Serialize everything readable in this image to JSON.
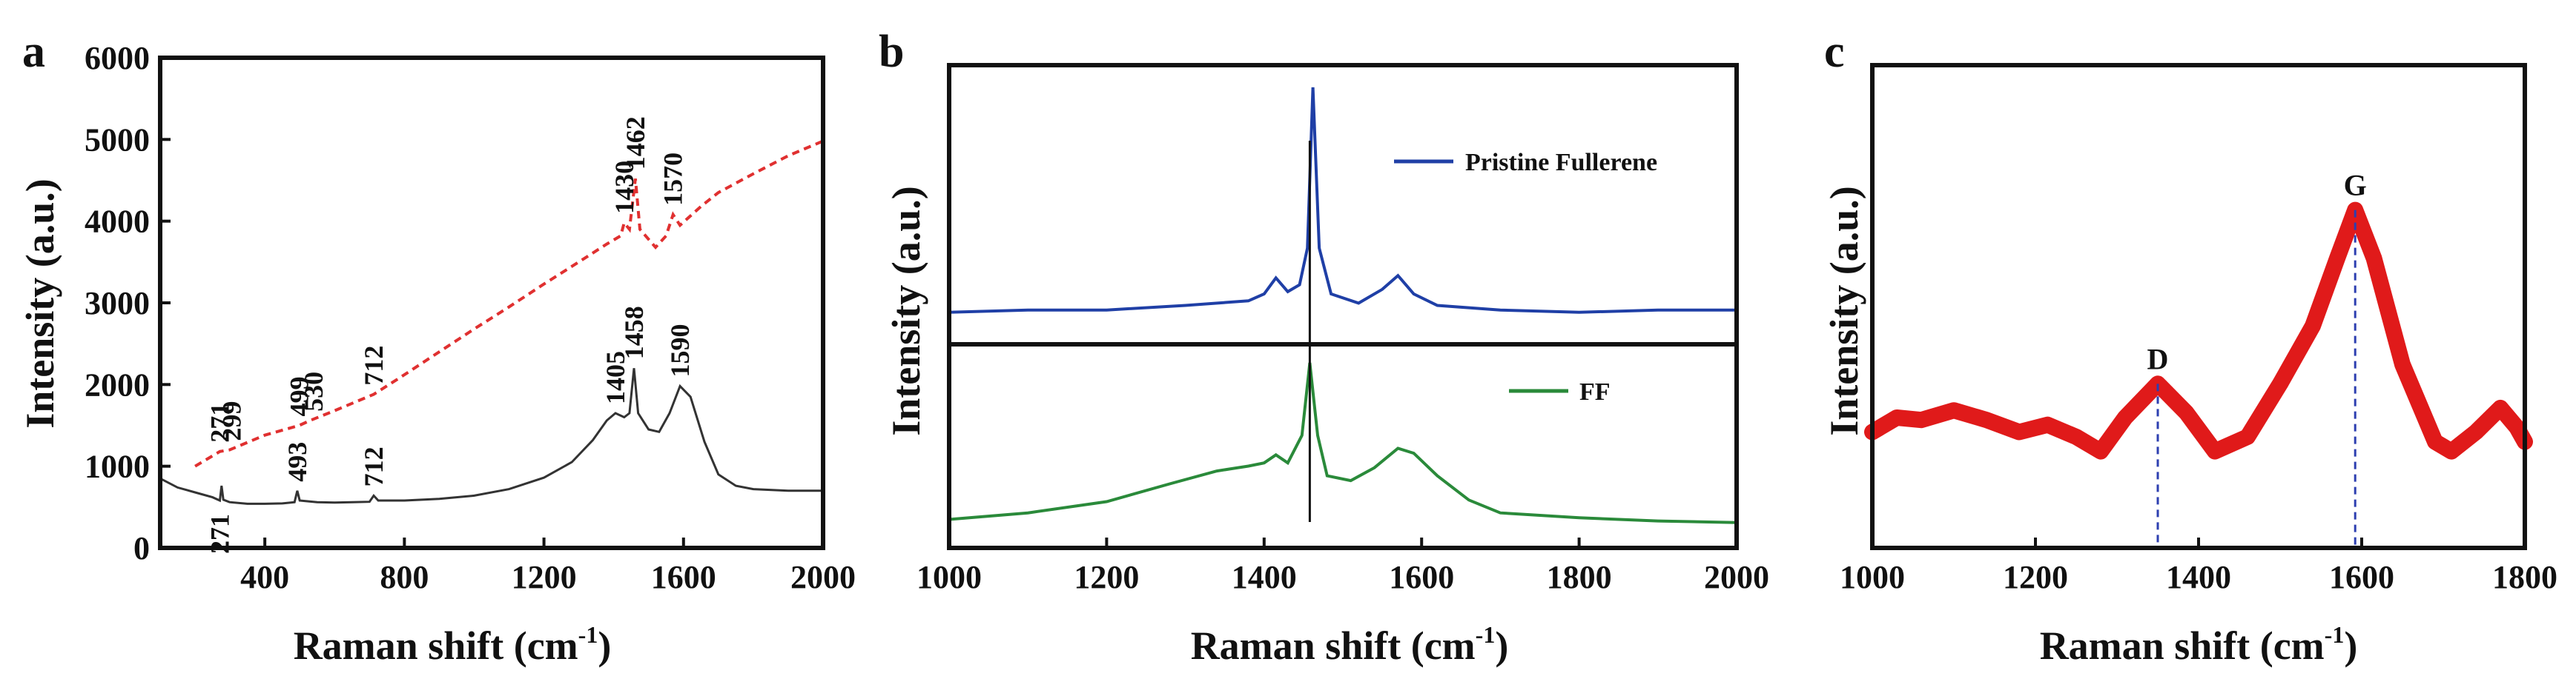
{
  "chart_data": [
    {
      "panel": "a",
      "type": "line",
      "xlabel": "Raman shift (cm",
      "xlabel_sup": "-1",
      "xlabel_close": ")",
      "ylabel": "Intensity (a.u.)",
      "xlim": [
        100,
        2000
      ],
      "ylim": [
        0,
        6000
      ],
      "x_ticks": [
        400,
        800,
        1200,
        1600,
        2000
      ],
      "y_ticks": [
        0,
        1000,
        2000,
        3000,
        4000,
        5000,
        6000
      ],
      "series": [
        {
          "name": "black solid",
          "color": "#333333",
          "style": "solid",
          "points": [
            [
              100,
              850
            ],
            [
              150,
              740
            ],
            [
              200,
              680
            ],
            [
              250,
              620
            ],
            [
              271,
              580
            ],
            [
              276,
              760
            ],
            [
              281,
              590
            ],
            [
              299,
              560
            ],
            [
              350,
              540
            ],
            [
              400,
              540
            ],
            [
              450,
              545
            ],
            [
              485,
              560
            ],
            [
              493,
              700
            ],
            [
              500,
              580
            ],
            [
              550,
              560
            ],
            [
              600,
              555
            ],
            [
              650,
              560
            ],
            [
              700,
              565
            ],
            [
              712,
              640
            ],
            [
              725,
              580
            ],
            [
              800,
              580
            ],
            [
              900,
              600
            ],
            [
              1000,
              640
            ],
            [
              1100,
              720
            ],
            [
              1200,
              860
            ],
            [
              1280,
              1050
            ],
            [
              1340,
              1320
            ],
            [
              1380,
              1560
            ],
            [
              1405,
              1650
            ],
            [
              1430,
              1600
            ],
            [
              1445,
              1650
            ],
            [
              1458,
              2200
            ],
            [
              1470,
              1650
            ],
            [
              1500,
              1450
            ],
            [
              1530,
              1420
            ],
            [
              1560,
              1650
            ],
            [
              1590,
              1980
            ],
            [
              1620,
              1850
            ],
            [
              1660,
              1300
            ],
            [
              1700,
              900
            ],
            [
              1750,
              760
            ],
            [
              1800,
              720
            ],
            [
              1900,
              700
            ],
            [
              2000,
              700
            ]
          ]
        },
        {
          "name": "red dashed",
          "color": "#e03030",
          "style": "dashed",
          "points": [
            [
              200,
              1000
            ],
            [
              271,
              1180
            ],
            [
              285,
              1190
            ],
            [
              299,
              1200
            ],
            [
              400,
              1380
            ],
            [
              499,
              1500
            ],
            [
              530,
              1560
            ],
            [
              600,
              1680
            ],
            [
              712,
              1880
            ],
            [
              800,
              2120
            ],
            [
              900,
              2400
            ],
            [
              1000,
              2680
            ],
            [
              1100,
              2950
            ],
            [
              1200,
              3230
            ],
            [
              1300,
              3500
            ],
            [
              1380,
              3720
            ],
            [
              1420,
              3820
            ],
            [
              1430,
              3980
            ],
            [
              1445,
              3900
            ],
            [
              1462,
              4520
            ],
            [
              1475,
              3900
            ],
            [
              1520,
              3680
            ],
            [
              1550,
              3820
            ],
            [
              1570,
              4080
            ],
            [
              1590,
              3950
            ],
            [
              1650,
              4180
            ],
            [
              1700,
              4350
            ],
            [
              1800,
              4580
            ],
            [
              1900,
              4800
            ],
            [
              2000,
              4980
            ]
          ]
        }
      ],
      "annotations_black": [
        {
          "text": "271",
          "x": 271,
          "y": 580,
          "below": true
        },
        {
          "text": "493",
          "x": 493,
          "y": 700
        },
        {
          "text": "712",
          "x": 712,
          "y": 640
        },
        {
          "text": "1405",
          "x": 1405,
          "y": 1650
        },
        {
          "text": "1458",
          "x": 1458,
          "y": 2200
        },
        {
          "text": "1590",
          "x": 1590,
          "y": 1980
        }
      ],
      "annotations_red": [
        {
          "text": "271",
          "x": 271,
          "y": 1180
        },
        {
          "text": "299",
          "x": 305,
          "y": 1200
        },
        {
          "text": "499",
          "x": 499,
          "y": 1500
        },
        {
          "text": "530",
          "x": 540,
          "y": 1560
        },
        {
          "text": "712",
          "x": 712,
          "y": 1880
        },
        {
          "text": "1430",
          "x": 1430,
          "y": 3980
        },
        {
          "text": "1462",
          "x": 1462,
          "y": 4520
        },
        {
          "text": "1570",
          "x": 1570,
          "y": 4080
        }
      ]
    },
    {
      "panel": "b",
      "type": "line",
      "xlabel": "Raman shift (cm",
      "xlabel_sup": "-1",
      "xlabel_close": ")",
      "ylabel": "Intensity (a.u.)",
      "xlim": [
        1000,
        2000
      ],
      "x_ticks": [
        1000,
        1200,
        1400,
        1600,
        1800,
        2000
      ],
      "divider_x": 1458,
      "series": [
        {
          "name": "Pristine Fullerene",
          "color": "#1f3fa6",
          "points": [
            [
              1000,
              0.02
            ],
            [
              1100,
              0.03
            ],
            [
              1200,
              0.03
            ],
            [
              1300,
              0.05
            ],
            [
              1380,
              0.07
            ],
            [
              1400,
              0.1
            ],
            [
              1415,
              0.17
            ],
            [
              1430,
              0.11
            ],
            [
              1445,
              0.14
            ],
            [
              1455,
              0.3
            ],
            [
              1462,
              1.0
            ],
            [
              1470,
              0.3
            ],
            [
              1485,
              0.1
            ],
            [
              1520,
              0.06
            ],
            [
              1550,
              0.12
            ],
            [
              1570,
              0.18
            ],
            [
              1590,
              0.1
            ],
            [
              1620,
              0.05
            ],
            [
              1700,
              0.03
            ],
            [
              1800,
              0.02
            ],
            [
              1900,
              0.03
            ],
            [
              2000,
              0.03
            ]
          ]
        },
        {
          "name": "FF",
          "color": "#2a8a3a",
          "points": [
            [
              1000,
              0.03
            ],
            [
              1100,
              0.07
            ],
            [
              1200,
              0.14
            ],
            [
              1280,
              0.25
            ],
            [
              1340,
              0.33
            ],
            [
              1380,
              0.36
            ],
            [
              1400,
              0.38
            ],
            [
              1415,
              0.43
            ],
            [
              1430,
              0.38
            ],
            [
              1448,
              0.55
            ],
            [
              1458,
              1.0
            ],
            [
              1468,
              0.55
            ],
            [
              1480,
              0.3
            ],
            [
              1510,
              0.27
            ],
            [
              1540,
              0.35
            ],
            [
              1570,
              0.47
            ],
            [
              1590,
              0.44
            ],
            [
              1620,
              0.3
            ],
            [
              1660,
              0.15
            ],
            [
              1700,
              0.07
            ],
            [
              1800,
              0.04
            ],
            [
              1900,
              0.02
            ],
            [
              2000,
              0.01
            ]
          ]
        }
      ]
    },
    {
      "panel": "c",
      "type": "line",
      "xlabel": "Raman shift (cm",
      "xlabel_sup": "-1",
      "xlabel_close": ")",
      "ylabel": "Intensity (a.u.)",
      "xlim": [
        1000,
        1800
      ],
      "x_ticks": [
        1000,
        1200,
        1400,
        1600,
        1800
      ],
      "ylim": [
        0,
        1
      ],
      "series": [
        {
          "name": "D/G band",
          "color": "#e01a1a",
          "points": [
            [
              1000,
              0.24
            ],
            [
              1030,
              0.27
            ],
            [
              1060,
              0.265
            ],
            [
              1100,
              0.285
            ],
            [
              1140,
              0.265
            ],
            [
              1180,
              0.24
            ],
            [
              1215,
              0.255
            ],
            [
              1250,
              0.23
            ],
            [
              1280,
              0.2
            ],
            [
              1310,
              0.27
            ],
            [
              1350,
              0.34
            ],
            [
              1385,
              0.28
            ],
            [
              1420,
              0.2
            ],
            [
              1460,
              0.23
            ],
            [
              1500,
              0.34
            ],
            [
              1540,
              0.46
            ],
            [
              1570,
              0.6
            ],
            [
              1592,
              0.7
            ],
            [
              1615,
              0.6
            ],
            [
              1650,
              0.38
            ],
            [
              1690,
              0.22
            ],
            [
              1710,
              0.2
            ],
            [
              1740,
              0.24
            ],
            [
              1770,
              0.29
            ],
            [
              1790,
              0.25
            ],
            [
              1800,
              0.22
            ]
          ]
        }
      ],
      "peaks": [
        {
          "label": "D",
          "x": 1350,
          "y": 0.34
        },
        {
          "label": "G",
          "x": 1592,
          "y": 0.7
        }
      ]
    }
  ],
  "labels": {
    "panel_a": "a",
    "panel_b": "b",
    "panel_c": "c"
  }
}
